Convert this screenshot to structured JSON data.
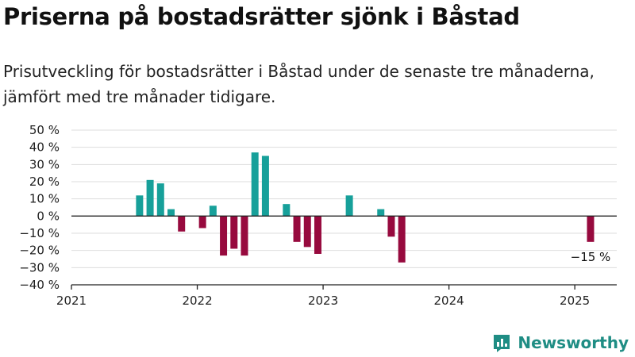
{
  "title": "Priserna på bostadsrätter sjönk i Båstad",
  "subtitle": "Prisutveckling för bostadsrätter i Båstad under de senaste tre månaderna, jämfört med tre månader tidigare.",
  "brand": "Newsworthy",
  "colors": {
    "positive": "#17a09a",
    "negative": "#970a3e",
    "grid": "#dddddd",
    "axis": "#222222",
    "brand": "#1f8d84"
  },
  "chart_data": {
    "type": "bar",
    "title": "Priserna på bostadsrätter sjönk i Båstad",
    "xlabel": "",
    "ylabel": "",
    "ylim": [
      -40,
      50
    ],
    "xlim": [
      "2021-01",
      "2025-05"
    ],
    "y_ticks": [
      50,
      40,
      30,
      20,
      10,
      0,
      -10,
      -20,
      -30,
      -40
    ],
    "y_tick_labels": [
      "50 %",
      "40 %",
      "30 %",
      "20 %",
      "10 %",
      "0 %",
      "−10 %",
      "−20 %",
      "−30 %",
      "−40 %"
    ],
    "x_ticks": [
      "2021",
      "2022",
      "2023",
      "2024",
      "2025"
    ],
    "grid": true,
    "series": [
      {
        "points": [
          {
            "x": "2021-07",
            "y": 12
          },
          {
            "x": "2021-08",
            "y": 21
          },
          {
            "x": "2021-09",
            "y": 19
          },
          {
            "x": "2021-10",
            "y": 4
          },
          {
            "x": "2021-11",
            "y": -9
          },
          {
            "x": "2022-01",
            "y": -7
          },
          {
            "x": "2022-02",
            "y": 6
          },
          {
            "x": "2022-03",
            "y": -23
          },
          {
            "x": "2022-04",
            "y": -19
          },
          {
            "x": "2022-05",
            "y": -23
          },
          {
            "x": "2022-06",
            "y": 37
          },
          {
            "x": "2022-07",
            "y": 35
          },
          {
            "x": "2022-09",
            "y": 7
          },
          {
            "x": "2022-10",
            "y": -15
          },
          {
            "x": "2022-11",
            "y": -18
          },
          {
            "x": "2022-12",
            "y": -22
          },
          {
            "x": "2023-03",
            "y": 12
          },
          {
            "x": "2023-06",
            "y": 4
          },
          {
            "x": "2023-07",
            "y": -12
          },
          {
            "x": "2023-08",
            "y": -27
          },
          {
            "x": "2025-02",
            "y": -15
          }
        ]
      }
    ],
    "annotations": [
      {
        "x": "2025-02",
        "text": "−15 %"
      }
    ]
  }
}
